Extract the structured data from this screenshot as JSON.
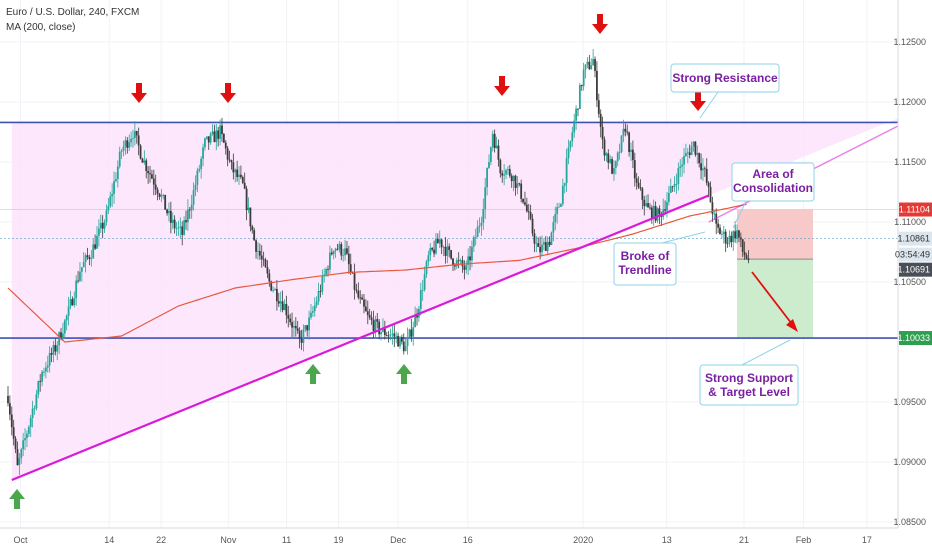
{
  "header": {
    "title": "Euro / U.S. Dollar, 240, FXCM",
    "indicator": "MA (200, close)"
  },
  "colors": {
    "bull": "#26a69a",
    "bear": "#3b3b3b",
    "ma": "#e8593c",
    "trend_line": "#d81bd8",
    "channel_fill": "#fbe3fb",
    "horizontal_line": "#3f51b5",
    "arrow_down": "#e01010",
    "arrow_up": "#4ca64c",
    "callout_border": "#8fd3e8",
    "annotation_text": "#7a1fa2",
    "red_zone": "#f8c9c9",
    "green_zone": "#cdeccd"
  },
  "chart_data": {
    "type": "candlestick",
    "symbol": "Euro / U.S. Dollar",
    "timeframe": "240",
    "source": "FXCM",
    "y_axis": {
      "min": 1.0845,
      "max": 1.1285,
      "ticks": [
        "1.12500",
        "1.12000",
        "1.11500",
        "1.11000",
        "1.10500",
        "1.09500",
        "1.09000",
        "1.08500"
      ]
    },
    "x_axis": {
      "ticks": [
        "Oct",
        "14",
        "22",
        "Nov",
        "11",
        "19",
        "Dec",
        "16",
        "2020",
        "13",
        "21",
        "Feb",
        "17"
      ]
    },
    "price_badges": [
      {
        "label": "1.11104",
        "value": 1.11104,
        "style": "red"
      },
      {
        "label": "1.10861",
        "value": 1.10861,
        "style": "light"
      },
      {
        "label": "03:54:49",
        "value": 1.10775,
        "style": "light"
      },
      {
        "label": "1.10691",
        "value": 1.10691,
        "style": "dark"
      },
      {
        "label": "1.10033",
        "value": 1.10033,
        "style": "green"
      }
    ],
    "path_keys": [
      [
        0,
        1.0955
      ],
      [
        5,
        1.0895
      ],
      [
        10,
        1.0925
      ],
      [
        18,
        1.0975
      ],
      [
        25,
        1.0995
      ],
      [
        32,
        1.1025
      ],
      [
        38,
        1.106
      ],
      [
        44,
        1.1075
      ],
      [
        52,
        1.1105
      ],
      [
        60,
        1.116
      ],
      [
        66,
        1.1175
      ],
      [
        72,
        1.115
      ],
      [
        80,
        1.1125
      ],
      [
        86,
        1.11
      ],
      [
        92,
        1.109
      ],
      [
        98,
        1.1125
      ],
      [
        104,
        1.1165
      ],
      [
        112,
        1.1175
      ],
      [
        118,
        1.1145
      ],
      [
        124,
        1.113
      ],
      [
        130,
        1.1085
      ],
      [
        138,
        1.105
      ],
      [
        146,
        1.103
      ],
      [
        154,
        1.1
      ],
      [
        160,
        1.102
      ],
      [
        166,
        1.105
      ],
      [
        172,
        1.108
      ],
      [
        178,
        1.1075
      ],
      [
        184,
        1.104
      ],
      [
        190,
        1.102
      ],
      [
        196,
        1.101
      ],
      [
        204,
        1.1005
      ],
      [
        210,
        1.0995
      ],
      [
        216,
        1.1025
      ],
      [
        222,
        1.107
      ],
      [
        228,
        1.1085
      ],
      [
        234,
        1.107
      ],
      [
        242,
        1.106
      ],
      [
        250,
        1.1105
      ],
      [
        256,
        1.1175
      ],
      [
        260,
        1.1145
      ],
      [
        266,
        1.114
      ],
      [
        272,
        1.112
      ],
      [
        280,
        1.1075
      ],
      [
        286,
        1.1085
      ],
      [
        292,
        1.112
      ],
      [
        298,
        1.1175
      ],
      [
        304,
        1.1225
      ],
      [
        309,
        1.1235
      ],
      [
        314,
        1.1165
      ],
      [
        320,
        1.114
      ],
      [
        326,
        1.118
      ],
      [
        332,
        1.113
      ],
      [
        338,
        1.111
      ],
      [
        344,
        1.1105
      ],
      [
        350,
        1.1125
      ],
      [
        356,
        1.115
      ],
      [
        362,
        1.1165
      ],
      [
        368,
        1.114
      ],
      [
        374,
        1.1095
      ],
      [
        380,
        1.1085
      ],
      [
        385,
        1.1092
      ],
      [
        388,
        1.1075
      ],
      [
        391,
        1.1069
      ]
    ],
    "ma_keys": [
      [
        0,
        1.1045
      ],
      [
        30,
        1.1
      ],
      [
        60,
        1.1005
      ],
      [
        90,
        1.103
      ],
      [
        120,
        1.1045
      ],
      [
        150,
        1.1052
      ],
      [
        180,
        1.1058
      ],
      [
        210,
        1.106
      ],
      [
        240,
        1.1065
      ],
      [
        270,
        1.1068
      ],
      [
        300,
        1.1078
      ],
      [
        330,
        1.109
      ],
      [
        360,
        1.1105
      ],
      [
        391,
        1.1115
      ]
    ],
    "resistance_level": 1.1183,
    "support_level": 1.10033,
    "trendline": {
      "from": [
        2,
        1.0885
      ],
      "to": [
        460,
        1.118
      ]
    },
    "extended_trendline": {
      "from": [
        370,
        1.11
      ],
      "to": [
        460,
        1.118
      ]
    },
    "position_entry": 1.10691,
    "position_stop": 1.11104,
    "position_target": 1.10033,
    "down_arrows": [
      [
        72,
        1.1183
      ],
      [
        118,
        1.1183
      ],
      [
        260,
        1.1183
      ],
      [
        309,
        1.126
      ],
      [
        360,
        1.1183
      ]
    ],
    "up_arrows": [
      [
        8,
        1.0878
      ],
      [
        162,
        1.0985
      ],
      [
        210,
        1.0985
      ]
    ],
    "annotations": [
      {
        "id": "resistance",
        "lines": [
          "Strong Resistance"
        ]
      },
      {
        "id": "consolidation",
        "lines": [
          "Area of",
          "Consolidation"
        ]
      },
      {
        "id": "trendline",
        "lines": [
          "Broke of",
          "Trendline"
        ]
      },
      {
        "id": "support",
        "lines": [
          "Strong Support",
          "& Target Level"
        ]
      }
    ]
  }
}
